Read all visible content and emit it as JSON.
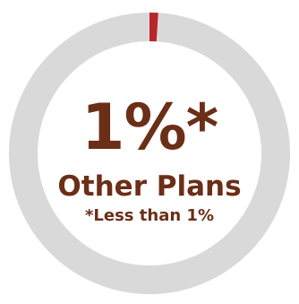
{
  "chart_data": {
    "type": "pie",
    "donut": true,
    "center_value": "1%*",
    "center_label": "Other Plans",
    "footnote": "*Less than 1%",
    "slices": [
      {
        "label": "Other Plans",
        "value": 1,
        "color": "#b9252b"
      },
      {
        "label": "",
        "value": 99,
        "color": "#d9d9d9"
      }
    ]
  }
}
